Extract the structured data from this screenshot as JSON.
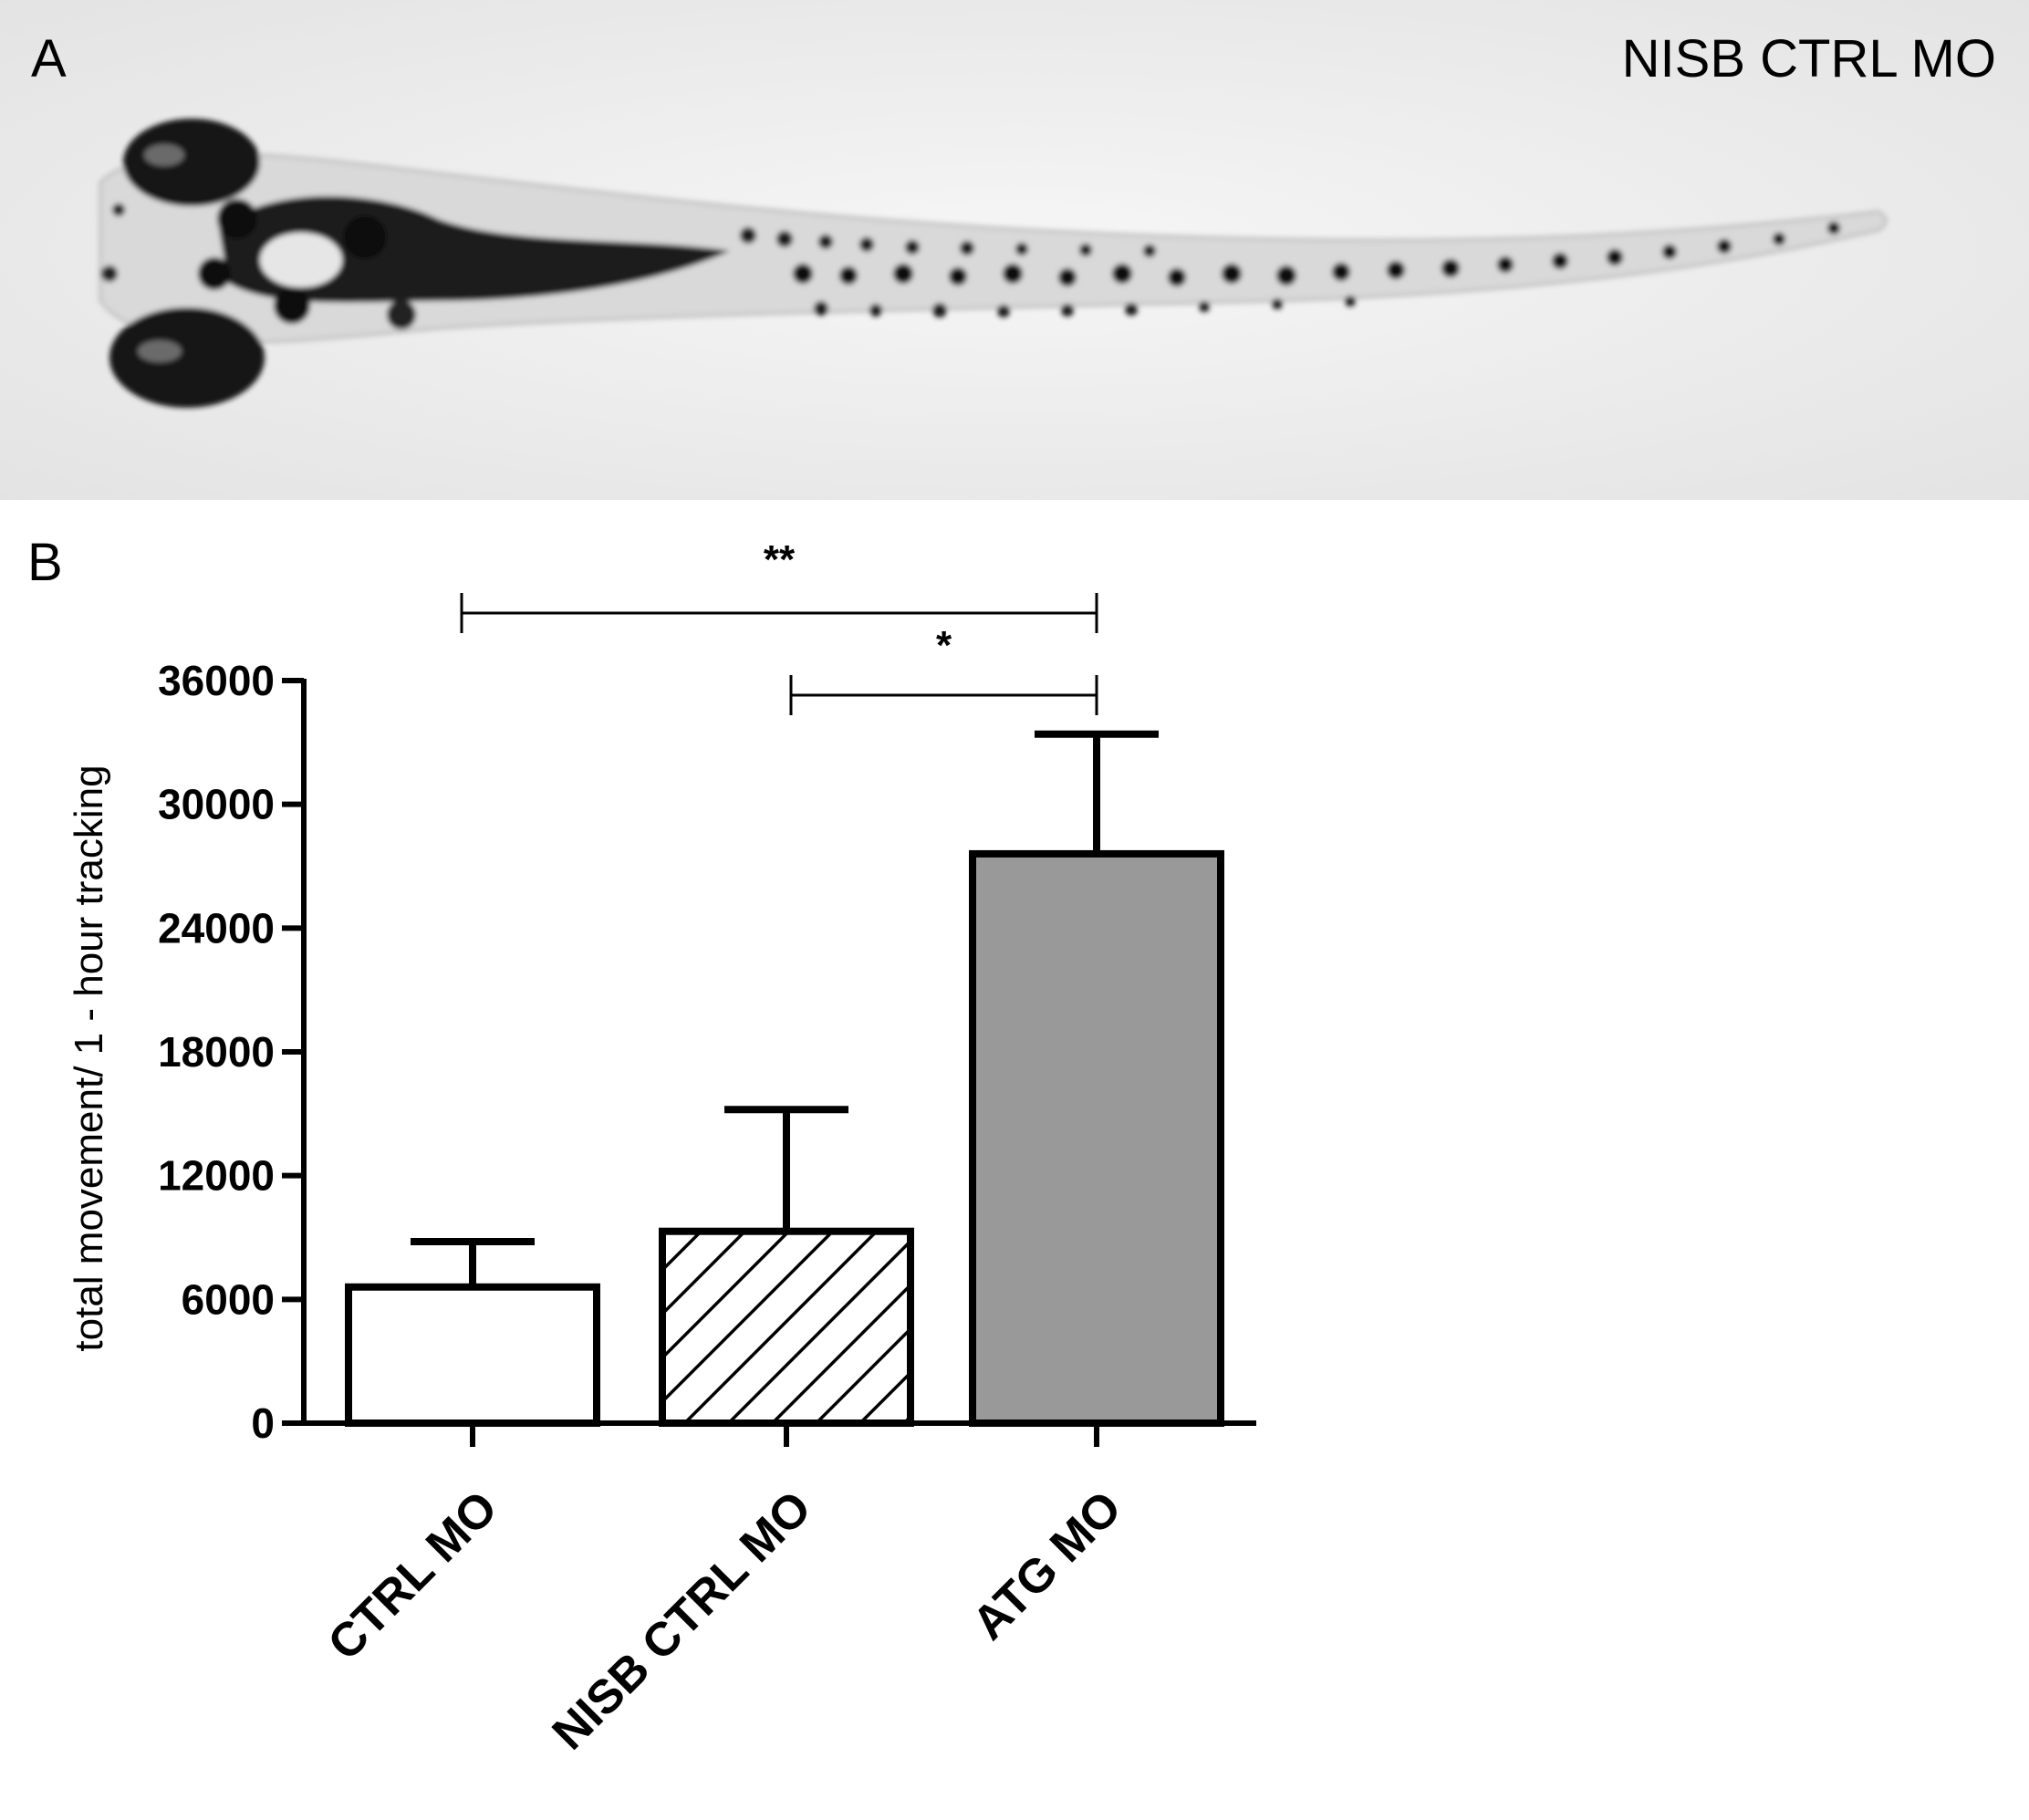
{
  "panel_a": {
    "letter": "A",
    "title": "NISB CTRL MO"
  },
  "panel_b": {
    "letter": "B"
  },
  "chart_data": {
    "type": "bar",
    "categories": [
      "CTRL MO",
      "NISB CTRL MO",
      "ATG MO"
    ],
    "values": [
      6600,
      9300,
      27600
    ],
    "errors": [
      2200,
      5900,
      5800
    ],
    "ylabel": "total movement/ 1 - hour tracking",
    "xlabel": "",
    "ylim": [
      0,
      36000
    ],
    "yticks": [
      0,
      6000,
      12000,
      18000,
      24000,
      30000,
      36000
    ],
    "ytick_labels": [
      "0",
      "6000",
      "12000",
      "18000",
      "24000",
      "30000",
      "36000"
    ],
    "bar_fills": [
      "#ffffff",
      "hatch",
      "#999999"
    ],
    "significance": [
      {
        "from": "CTRL MO",
        "to": "ATG MO",
        "label": "**"
      },
      {
        "from": "NISB CTRL MO",
        "to": "ATG MO",
        "label": "*"
      }
    ],
    "grid": false,
    "legend": "none"
  }
}
